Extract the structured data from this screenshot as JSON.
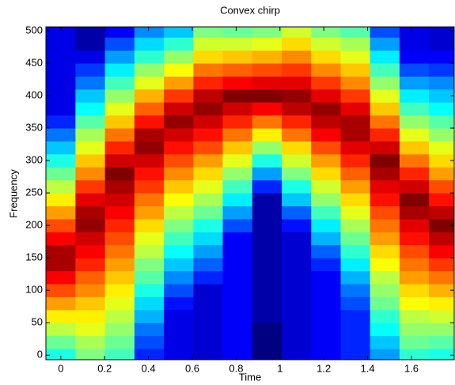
{
  "chart_data": {
    "type": "heatmap",
    "title": "Convex chirp",
    "x_label": "Time",
    "y_label": "Frequency",
    "x": [
      0,
      0.134,
      0.269,
      0.403,
      0.538,
      0.672,
      0.806,
      0.941,
      1.075,
      1.21,
      1.344,
      1.478,
      1.613,
      1.747
    ],
    "y": [
      0,
      20,
      40,
      60,
      80,
      100,
      120,
      140,
      160,
      180,
      200,
      220,
      240,
      260,
      280,
      300,
      320,
      340,
      360,
      380,
      400,
      420,
      440,
      460,
      480,
      500
    ],
    "values": [
      [
        -30,
        -26,
        -22,
        -18,
        -14,
        -10,
        -6,
        -2,
        -2,
        -6,
        -10,
        -14,
        -18,
        -22,
        -26,
        -30,
        -34,
        -38,
        -42,
        -45,
        -45,
        -45,
        -45,
        -45,
        -45,
        -45
      ],
      [
        -25,
        -23,
        -20,
        -18,
        -16,
        -13,
        -11,
        -8,
        -6,
        -4,
        -1,
        -2,
        -5,
        -9,
        -13,
        -16,
        -20,
        -23,
        -27,
        -31,
        -34,
        -38,
        -41,
        -45,
        -48,
        -48
      ],
      [
        -28,
        -26,
        -24,
        -22,
        -20,
        -18,
        -16,
        -14,
        -12,
        -10,
        -8,
        -6,
        -4,
        -2,
        0,
        -4,
        -8,
        -12,
        -16,
        -20,
        -24,
        -28,
        -32,
        -36,
        -40,
        -44
      ],
      [
        -42,
        -40,
        -38,
        -35,
        -33,
        -30,
        -27,
        -25,
        -22,
        -20,
        -17,
        -14,
        -12,
        -9,
        -7,
        -4,
        -1,
        -2,
        -7,
        -11,
        -15,
        -20,
        -24,
        -29,
        -33,
        -37
      ],
      [
        -45,
        -45,
        -45,
        -45,
        -43,
        -40,
        -37,
        -34,
        -31,
        -28,
        -25,
        -22,
        -19,
        -16,
        -13,
        -10,
        -7,
        -4,
        -1,
        -4,
        -9,
        -14,
        -19,
        -24,
        -29,
        -34
      ],
      [
        -46,
        -46,
        -46,
        -46,
        -46,
        -46,
        -42,
        -39,
        -36,
        -33,
        -30,
        -26,
        -23,
        -20,
        -17,
        -14,
        -10,
        -7,
        -4,
        -1,
        -3,
        -8,
        -12,
        -17,
        -21,
        -25
      ],
      [
        -44,
        -44,
        -44,
        -44,
        -44,
        -44,
        -44,
        -44,
        -44,
        -44,
        -40,
        -36,
        -32,
        -28,
        -24,
        -20,
        -16,
        -12,
        -8,
        -4,
        0,
        -6,
        -11,
        -16,
        -21,
        -26
      ],
      [
        -50,
        -50,
        -50,
        -48,
        -48,
        -48,
        -48,
        -48,
        -48,
        -48,
        -48,
        -48,
        -48,
        -42,
        -36,
        -30,
        -24,
        -18,
        -12,
        -6,
        0,
        -5,
        -10,
        -15,
        -20,
        -25
      ],
      [
        -46,
        -46,
        -46,
        -46,
        -46,
        -46,
        -46,
        -46,
        -46,
        -46,
        -43,
        -39,
        -34,
        -30,
        -25,
        -21,
        -17,
        -12,
        -8,
        -3,
        -1,
        -5,
        -9,
        -13,
        -17,
        -21
      ],
      [
        -44,
        -44,
        -44,
        -44,
        -44,
        -44,
        -44,
        -42,
        -39,
        -35,
        -32,
        -28,
        -24,
        -21,
        -17,
        -14,
        -10,
        -6,
        -3,
        -1,
        -5,
        -9,
        -13,
        -17,
        -21,
        -25
      ],
      [
        -42,
        -42,
        -42,
        -42,
        -40,
        -38,
        -35,
        -32,
        -29,
        -26,
        -23,
        -20,
        -17,
        -14,
        -11,
        -8,
        -5,
        -2,
        -2,
        -5,
        -9,
        -13,
        -16,
        -20,
        -23,
        -27
      ],
      [
        -36,
        -34,
        -31,
        -29,
        -26,
        -24,
        -22,
        -19,
        -17,
        -14,
        -12,
        -10,
        -7,
        -5,
        -2,
        0,
        -4,
        -8,
        -12,
        -16,
        -20,
        -24,
        -28,
        -32,
        -36,
        -40
      ],
      [
        -29,
        -26,
        -24,
        -22,
        -19,
        -17,
        -14,
        -12,
        -10,
        -7,
        -5,
        -2,
        0,
        -4,
        -8,
        -12,
        -16,
        -20,
        -24,
        -28,
        -32,
        -36,
        -40,
        -44,
        -45,
        -45
      ],
      [
        -30,
        -27,
        -24,
        -21,
        -18,
        -15,
        -12,
        -9,
        -6,
        -3,
        0,
        -3,
        -7,
        -10,
        -14,
        -17,
        -20,
        -24,
        -27,
        -31,
        -34,
        -37,
        -41,
        -44,
        -46,
        -46
      ]
    ],
    "clim": [
      -50,
      0
    ],
    "colormap": "jet",
    "xlim": [
      -0.068,
      1.795
    ],
    "ylim": [
      -7,
      506
    ],
    "xticks": [
      0,
      0.2,
      0.4,
      0.6,
      0.8,
      1,
      1.2,
      1.4,
      1.6
    ],
    "yticks": [
      0,
      50,
      100,
      150,
      200,
      250,
      300,
      350,
      400,
      450,
      500
    ]
  }
}
